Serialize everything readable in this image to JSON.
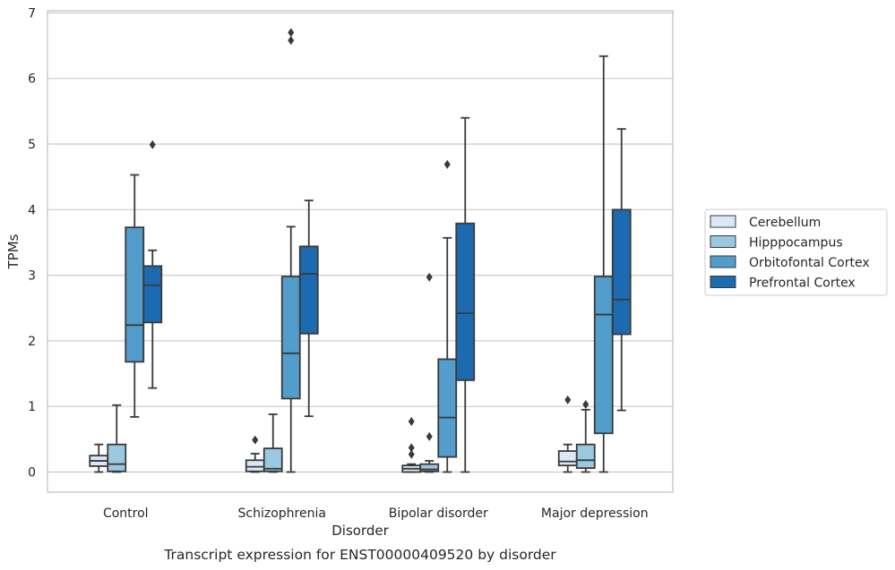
{
  "chart_data": {
    "type": "box",
    "xlabel": "Disorder",
    "ylabel": "TPMs",
    "caption": "Transcript expression for ENST00000409520 by disorder",
    "categories": [
      "Control",
      "Schizophrenia",
      "Bipolar disorder",
      "Major depression"
    ],
    "ylim": [
      -0.3,
      7.05
    ],
    "yticks": [
      0,
      1,
      2,
      3,
      4,
      5,
      6,
      7
    ],
    "grid": true,
    "legend_position": "right",
    "series": [
      {
        "name": "Cerebellum",
        "color": "#dbe9f6",
        "boxes": [
          {
            "whislo": 0.0,
            "q1": 0.09,
            "med": 0.17,
            "q3": 0.25,
            "whishi": 0.42,
            "fliers": []
          },
          {
            "whislo": 0.0,
            "q1": 0.01,
            "med": 0.08,
            "q3": 0.18,
            "whishi": 0.28,
            "fliers": [
              0.49
            ]
          },
          {
            "whislo": 0.0,
            "q1": 0.0,
            "med": 0.05,
            "q3": 0.1,
            "whishi": 0.12,
            "fliers": [
              0.27,
              0.37,
              0.77
            ]
          },
          {
            "whislo": 0.0,
            "q1": 0.1,
            "med": 0.16,
            "q3": 0.32,
            "whishi": 0.42,
            "fliers": [
              1.1
            ]
          }
        ]
      },
      {
        "name": "Hipppocampus",
        "color": "#9ac8e0",
        "boxes": [
          {
            "whislo": 0.0,
            "q1": 0.01,
            "med": 0.12,
            "q3": 0.42,
            "whishi": 1.02,
            "fliers": []
          },
          {
            "whislo": 0.0,
            "q1": 0.01,
            "med": 0.05,
            "q3": 0.36,
            "whishi": 0.88,
            "fliers": []
          },
          {
            "whislo": 0.0,
            "q1": 0.01,
            "med": 0.04,
            "q3": 0.12,
            "whishi": 0.17,
            "fliers": [
              0.54,
              2.97
            ]
          },
          {
            "whislo": 0.0,
            "q1": 0.06,
            "med": 0.18,
            "q3": 0.42,
            "whishi": 0.95,
            "fliers": [
              1.03
            ]
          }
        ]
      },
      {
        "name": "Orbitofontal Cortex",
        "color": "#529dcc",
        "boxes": [
          {
            "whislo": 0.84,
            "q1": 1.68,
            "med": 2.24,
            "q3": 3.73,
            "whishi": 4.53,
            "fliers": []
          },
          {
            "whislo": 0.0,
            "q1": 1.12,
            "med": 1.81,
            "q3": 2.98,
            "whishi": 3.74,
            "fliers": [
              6.58,
              6.7
            ]
          },
          {
            "whislo": 0.0,
            "q1": 0.23,
            "med": 0.83,
            "q3": 1.72,
            "whishi": 3.57,
            "fliers": [
              4.69
            ]
          },
          {
            "whislo": 0.0,
            "q1": 0.59,
            "med": 2.4,
            "q3": 2.98,
            "whishi": 6.34,
            "fliers": []
          }
        ]
      },
      {
        "name": "Prefrontal Cortex",
        "color": "#1c6aaf",
        "boxes": [
          {
            "whislo": 1.28,
            "q1": 2.28,
            "med": 2.85,
            "q3": 3.14,
            "whishi": 3.38,
            "fliers": [
              4.99
            ]
          },
          {
            "whislo": 0.85,
            "q1": 2.11,
            "med": 3.02,
            "q3": 3.44,
            "whishi": 4.14,
            "fliers": []
          },
          {
            "whislo": 0.0,
            "q1": 1.4,
            "med": 2.42,
            "q3": 3.79,
            "whishi": 5.4,
            "fliers": []
          },
          {
            "whislo": 0.94,
            "q1": 2.1,
            "med": 2.63,
            "q3": 4.0,
            "whishi": 5.23,
            "fliers": []
          }
        ]
      }
    ]
  }
}
